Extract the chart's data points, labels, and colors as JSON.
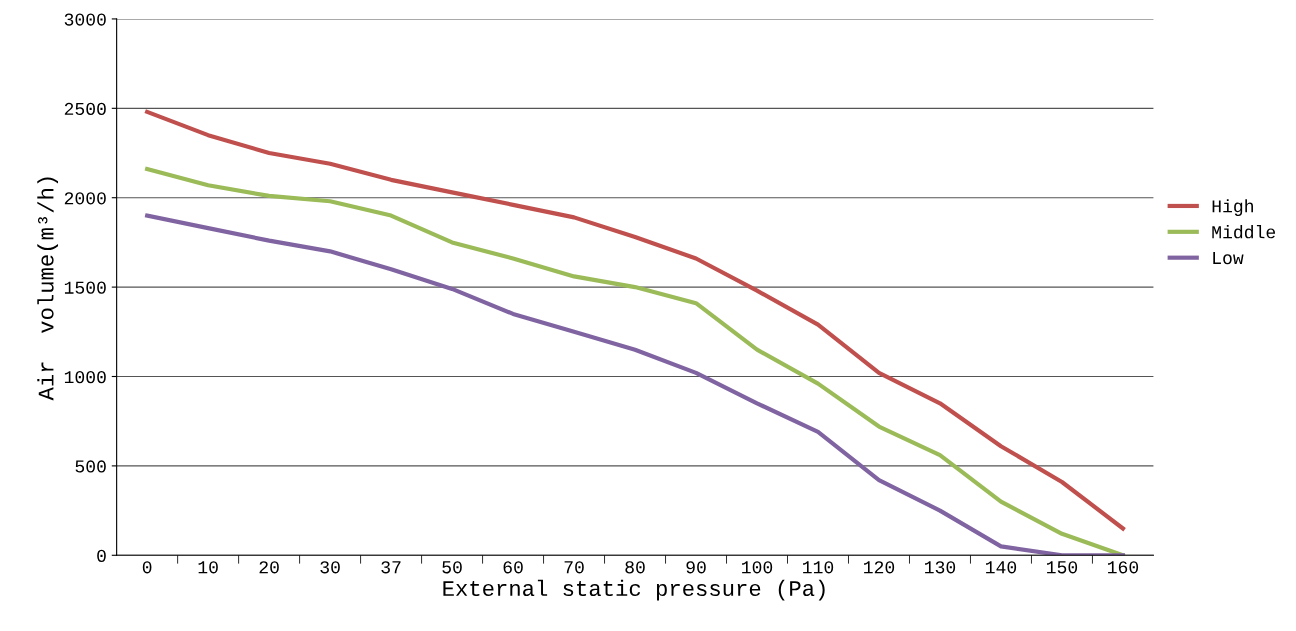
{
  "chart_data": {
    "type": "line",
    "xlabel": "External static pressure (Pa)",
    "ylabel": "Air  volume(m³/h)",
    "categories": [
      "0",
      "10",
      "20",
      "30",
      "37",
      "50",
      "60",
      "70",
      "80",
      "90",
      "100",
      "110",
      "120",
      "130",
      "140",
      "150",
      "160"
    ],
    "series": [
      {
        "name": "High",
        "color": "#c0504d",
        "values": [
          2480,
          2350,
          2250,
          2190,
          2100,
          2030,
          1960,
          1890,
          1780,
          1660,
          1480,
          1290,
          1020,
          850,
          610,
          410,
          150
        ]
      },
      {
        "name": "Middle",
        "color": "#9bbb59",
        "values": [
          2160,
          2070,
          2010,
          1980,
          1900,
          1750,
          1660,
          1560,
          1500,
          1410,
          1150,
          960,
          720,
          560,
          300,
          120,
          0
        ]
      },
      {
        "name": "Low",
        "color": "#8064a2",
        "values": [
          1900,
          1830,
          1760,
          1700,
          1600,
          1490,
          1350,
          1250,
          1150,
          1020,
          850,
          690,
          420,
          250,
          50,
          0,
          0
        ]
      }
    ],
    "ylim": [
      0,
      3000
    ],
    "yticks": [
      0,
      500,
      1000,
      1500,
      2000,
      2500,
      3000
    ],
    "grid": "y",
    "legend": "right",
    "marker": "none",
    "line_style": "solid"
  }
}
